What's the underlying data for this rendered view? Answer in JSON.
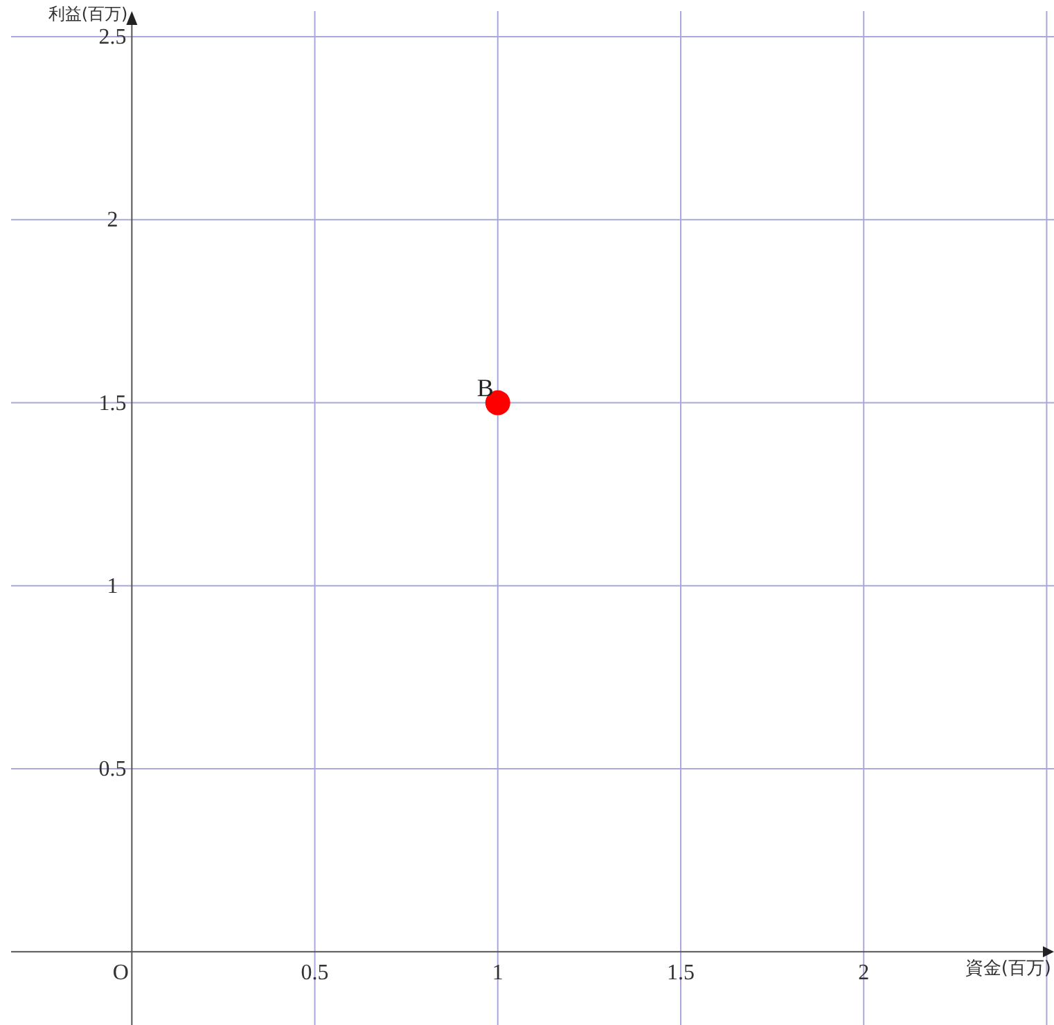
{
  "chart_data": {
    "type": "scatter",
    "xlabel": "資金(百万)",
    "ylabel": "利益(百万)",
    "x": [
      1
    ],
    "series": [
      {
        "color": "#ff0000",
        "values": [
          1.5
        ]
      }
    ],
    "xlim": [
      -0.33,
      2.52
    ],
    "ylim": [
      -0.2,
      2.57
    ],
    "xticks": [
      {
        "value": 0,
        "label": "O"
      },
      0.5,
      1,
      1.5,
      2,
      {
        "value": 2.5,
        "label": null
      }
    ],
    "yticks": [
      0.5,
      1,
      1.5,
      2,
      2.5
    ],
    "grid": true,
    "marker": "circle",
    "annotations": [
      {
        "text": "B",
        "x": 1,
        "y": 1.5
      }
    ]
  }
}
